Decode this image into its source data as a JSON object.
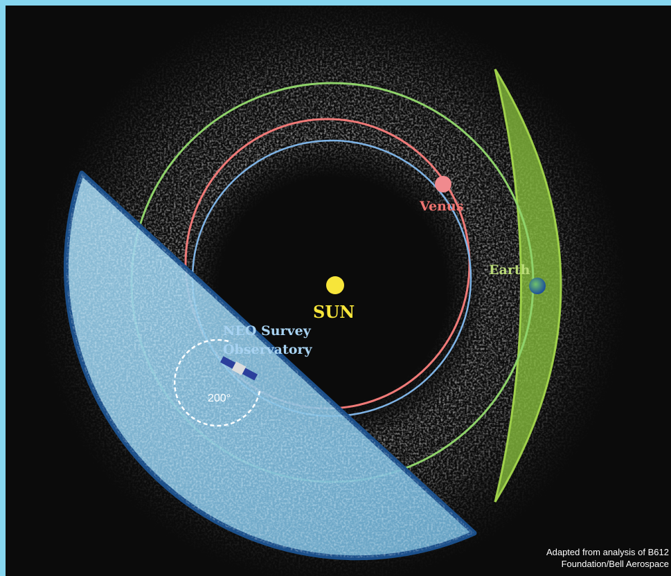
{
  "labels": {
    "sun": "SUN",
    "venus": "Venus",
    "earth": "Earth",
    "observatory": [
      "NEO Survey",
      "Observatory"
    ],
    "field_of_view": "200°"
  },
  "credit": [
    "Adapted from analysis of B612",
    "Foundation/Bell Aerospace"
  ]
}
